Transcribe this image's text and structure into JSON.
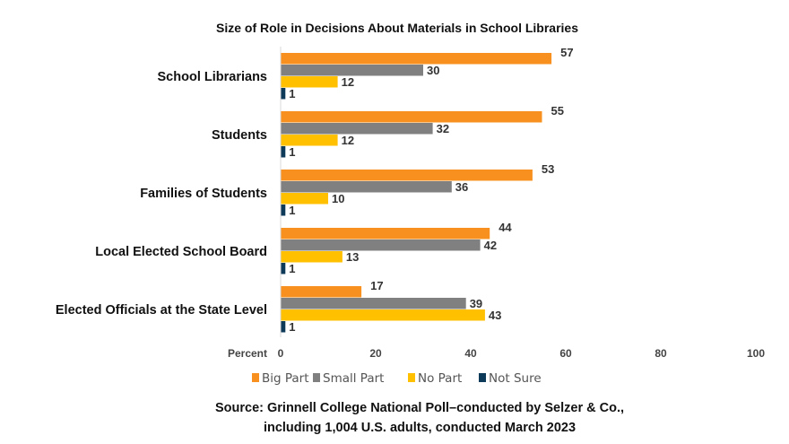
{
  "chart_data": {
    "type": "bar",
    "orientation": "horizontal",
    "title": "Size of Role in Decisions About Materials in School Libraries",
    "xlabel": "Percent",
    "xlim": [
      0,
      100
    ],
    "xticks": [
      "0",
      "20",
      "40",
      "60",
      "80",
      "100"
    ],
    "grid": false,
    "legend_position": "bottom",
    "categories": [
      "School Librarians",
      "Students",
      "Families of Students",
      "Local Elected School Board",
      "Elected Officials at the State Level"
    ],
    "series": [
      {
        "name": "Big Part",
        "color": "#F7901E",
        "values": [
          57,
          55,
          53,
          44,
          17
        ]
      },
      {
        "name": "Small Part",
        "color": "#808080",
        "values": [
          30,
          32,
          36,
          42,
          39
        ]
      },
      {
        "name": "No Part",
        "color": "#FFC000",
        "values": [
          12,
          12,
          10,
          13,
          43
        ]
      },
      {
        "name": "Not Sure",
        "color": "#0E3A5A",
        "values": [
          1,
          1,
          1,
          1,
          1
        ]
      }
    ],
    "source_lines": [
      "Source:  Grinnell College National Poll–conducted by Selzer & Co.,",
      "including 1,004 U.S. adults, conducted March 2023"
    ]
  }
}
